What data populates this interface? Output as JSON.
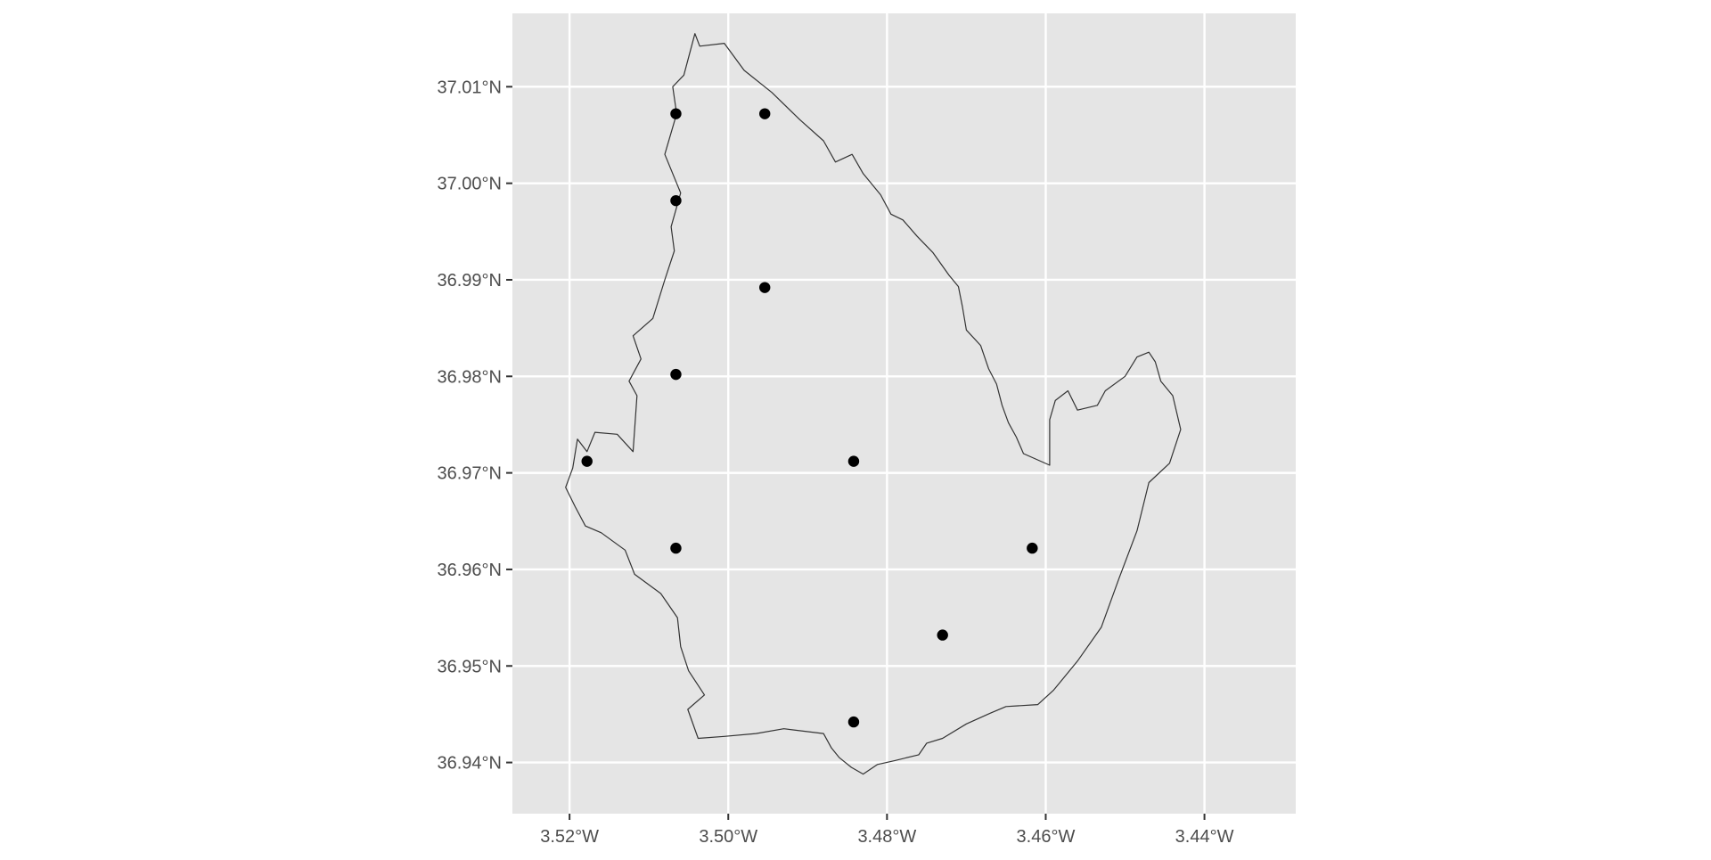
{
  "chart_data": {
    "type": "scatter",
    "title": "",
    "xlabel": "",
    "ylabel": "",
    "x_ticks": [
      "3.52°W",
      "3.50°W",
      "3.48°W",
      "3.46°W",
      "3.44°W"
    ],
    "y_ticks": [
      "37.01°N",
      "37.00°N",
      "36.99°N",
      "36.98°N",
      "36.97°N",
      "36.96°N",
      "36.95°N",
      "36.94°N"
    ],
    "x_tick_values": [
      -3.52,
      -3.5,
      -3.48,
      -3.46,
      -3.44
    ],
    "y_tick_values": [
      37.01,
      37.0,
      36.99,
      36.98,
      36.97,
      36.96,
      36.95,
      36.94
    ],
    "xlim": [
      -3.5272,
      -3.4285
    ],
    "ylim": [
      36.9347,
      37.0176
    ],
    "grid": true,
    "legend": "none",
    "series": [
      {
        "x": [
          -3.5066,
          -3.4954,
          -3.5066,
          -3.4954,
          -3.5066,
          -3.5178,
          -3.4842,
          -3.5066,
          -3.4617,
          -3.473,
          -3.4842
        ],
        "y": [
          37.0072,
          37.0072,
          36.9982,
          36.9892,
          36.9802,
          36.9712,
          36.9712,
          36.9622,
          36.9622,
          36.9532,
          36.9442
        ]
      }
    ],
    "outline": {
      "lon": [
        -3.5178,
        -3.5168,
        -3.514,
        -3.512,
        -3.5115,
        -3.5125,
        -3.511,
        -3.512,
        -3.5095,
        -3.508,
        -3.5068,
        -3.5072,
        -3.506,
        -3.508,
        -3.5065,
        -3.507,
        -3.5056,
        -3.5042,
        -3.5036,
        -3.5005,
        -3.498,
        -3.4945,
        -3.491,
        -3.488,
        -3.4865,
        -3.4844,
        -3.483,
        -3.4808,
        -3.4795,
        -3.478,
        -3.4762,
        -3.4742,
        -3.4722,
        -3.471,
        -3.4705,
        -3.47,
        -3.4682,
        -3.4672,
        -3.4662,
        -3.4655,
        -3.4647,
        -3.4637,
        -3.4628,
        -3.4595,
        -3.4595,
        -3.4588,
        -3.4572,
        -3.456,
        -3.4535,
        -3.4525,
        -3.45,
        -3.4485,
        -3.447,
        -3.4462,
        -3.4455,
        -3.444,
        -3.443,
        -3.4444,
        -3.447,
        -3.4485,
        -3.4508,
        -3.453,
        -3.456,
        -3.459,
        -3.461,
        -3.465,
        -3.467,
        -3.47,
        -3.473,
        -3.475,
        -3.476,
        -3.479,
        -3.4812,
        -3.483,
        -3.4845,
        -3.486,
        -3.487,
        -3.488,
        -3.493,
        -3.4965,
        -3.5005,
        -3.5038,
        -3.5051,
        -3.503,
        -3.505,
        -3.506,
        -3.5064,
        -3.5085,
        -3.5118,
        -3.513,
        -3.516,
        -3.518,
        -3.5193,
        -3.5205,
        -3.5196,
        -3.519,
        -3.5178
      ],
      "lat": [
        36.9722,
        36.9742,
        36.974,
        36.9722,
        36.978,
        36.9795,
        36.9818,
        36.9842,
        36.986,
        36.99,
        36.993,
        36.9955,
        36.999,
        37.003,
        37.0072,
        37.01,
        37.0112,
        37.0155,
        37.0142,
        37.0145,
        37.0117,
        37.0094,
        37.0066,
        37.0044,
        37.0022,
        37.003,
        37.001,
        36.9988,
        36.9968,
        36.9962,
        36.9945,
        36.9928,
        36.9905,
        36.9893,
        36.9872,
        36.9848,
        36.9832,
        36.9808,
        36.9792,
        36.977,
        36.9752,
        36.9737,
        36.972,
        36.9708,
        36.9755,
        36.9775,
        36.9785,
        36.9765,
        36.977,
        36.9785,
        36.98,
        36.982,
        36.9825,
        36.9815,
        36.9795,
        36.978,
        36.9745,
        36.971,
        36.969,
        36.964,
        36.959,
        36.954,
        36.9505,
        36.9475,
        36.946,
        36.9458,
        36.9451,
        36.944,
        36.9425,
        36.942,
        36.9408,
        36.9402,
        36.9398,
        36.9388,
        36.9395,
        36.9405,
        36.9415,
        36.943,
        36.9435,
        36.943,
        36.9427,
        36.9425,
        36.9455,
        36.947,
        36.9495,
        36.952,
        36.955,
        36.9575,
        36.9595,
        36.962,
        36.9638,
        36.9645,
        36.9665,
        36.9685,
        36.9705,
        36.9735,
        36.9722
      ]
    },
    "colors": {
      "panel": "#e5e5e5",
      "grid": "#ffffff",
      "point": "#000000",
      "outline": "#333333",
      "tick_text": "#4d4d4d",
      "tick_mark": "#333333"
    }
  }
}
